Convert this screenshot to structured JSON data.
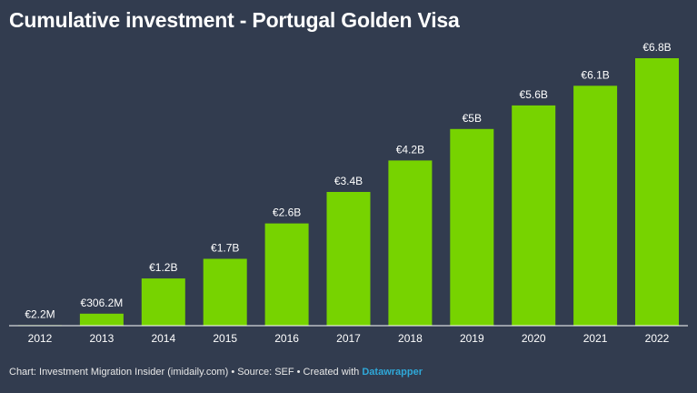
{
  "chart_data": {
    "type": "bar",
    "title": "Cumulative investment - Portugal Golden Visa",
    "xlabel": "",
    "ylabel": "",
    "categories": [
      "2012",
      "2013",
      "2014",
      "2015",
      "2016",
      "2017",
      "2018",
      "2019",
      "2020",
      "2021",
      "2022"
    ],
    "values": [
      0.0022,
      0.3062,
      1.2,
      1.7,
      2.6,
      3.4,
      4.2,
      5.0,
      5.6,
      6.1,
      6.8
    ],
    "value_labels": [
      "€2.2M",
      "€306.2M",
      "€1.2B",
      "€1.7B",
      "€2.6B",
      "€3.4B",
      "€4.2B",
      "€5B",
      "€5.6B",
      "€6.1B",
      "€6.8B"
    ],
    "unit": "EUR billions",
    "ylim": [
      0,
      6.8
    ],
    "grid": false,
    "legend": "none"
  },
  "footer": {
    "text": "Chart: Investment Migration Insider (imidaily.com) • Source: SEF • Created with ",
    "brand": "Datawrapper"
  },
  "colors": {
    "background": "#323c4f",
    "bar": "#77d300",
    "baseline": "#ffffff",
    "brand": "#2fa8d8"
  }
}
